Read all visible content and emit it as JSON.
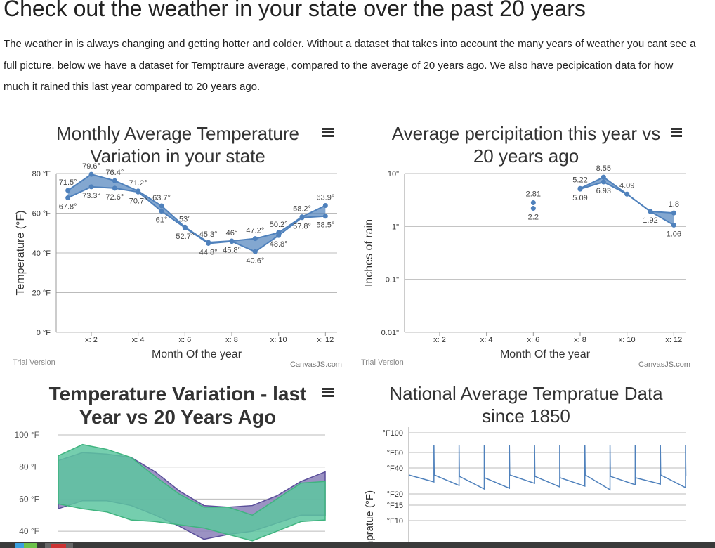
{
  "page": {
    "title": "Check out the weather in your state over the past 20 years",
    "intro": "The weather in is always changing and getting hotter and colder. Without a dataset that takes into account the many years of weather you cant see a full picture. below we have a dataset for Temptraure average, compared to the average of 20 years ago. We also have pecipication data for how much it rained this last year compared to 20 years ago."
  },
  "charts": {
    "temp_range": {
      "title_line1": "Monthly Average Temperature",
      "title_line2": "Variation in your state",
      "trial": "Trial Version",
      "credit": "CanvasJS.com"
    },
    "precip": {
      "title_line1": "Average percipitation this year vs",
      "title_line2": "20 years ago",
      "trial": "Trial Version",
      "credit": "CanvasJS.com"
    },
    "temp_variation": {
      "title_line1": "Temperature Variation - last",
      "title_line2": "Year vs 20 Years Ago"
    },
    "national": {
      "title_line1": "National Average Tempratue Data",
      "title_line2": "since 1850"
    }
  },
  "colors": {
    "primary_line": "#4f81bc",
    "range_fill": "#4f81bc",
    "green_fill": "#5dc6a0",
    "purple_fill": "#8a7fb8",
    "grid": "#bbbbbb"
  },
  "chart_data": [
    {
      "type": "rangeArea",
      "title": "Monthly Average Temperature Variation in your state",
      "xlabel": "Month Of the year",
      "ylabel": "Temperature (°F)",
      "ylim": [
        0,
        80
      ],
      "yticks": [
        "0 °F",
        "20 °F",
        "40 °F",
        "60 °F",
        "80 °F"
      ],
      "xticks": [
        "x: 2",
        "x: 4",
        "x: 6",
        "x: 8",
        "x: 10",
        "x: 12"
      ],
      "x": [
        1,
        2,
        3,
        4,
        5,
        6,
        7,
        8,
        9,
        10,
        11,
        12
      ],
      "high": [
        71.5,
        79.6,
        76.4,
        71.2,
        63.7,
        53,
        45.3,
        46,
        47.2,
        50.2,
        58.2,
        63.9
      ],
      "low": [
        67.8,
        73.3,
        72.6,
        70.7,
        61,
        52.7,
        44.8,
        45.8,
        40.6,
        48.8,
        57.8,
        58.5
      ],
      "high_labels": [
        "71.5°",
        "79.6°",
        "76.4°",
        "71.2°",
        "63.7°",
        "53°",
        "45.3°",
        "46°",
        "47.2°",
        "50.2°",
        "58.2°",
        "63.9°"
      ],
      "low_labels": [
        "67.8°",
        "73.3°",
        "72.6°",
        "70.7°",
        "61°",
        "52.7°",
        "44.8°",
        "45.8°",
        "40.6°",
        "48.8°",
        "57.8°",
        "58.5°"
      ],
      "grid": true
    },
    {
      "type": "rangeArea",
      "title": "Average percipitation this year vs 20 years ago",
      "xlabel": "Month Of the year",
      "ylabel": "Inches of rain",
      "log_scale": true,
      "ylim": [
        0.01,
        10
      ],
      "yticks": [
        "0.01\"",
        "0.1\"",
        "1\"",
        "10\""
      ],
      "xticks": [
        "x: 2",
        "x: 4",
        "x: 6",
        "x: 8",
        "x: 10",
        "x: 12"
      ],
      "segments": [
        {
          "x": [
            6
          ],
          "high": [
            2.81
          ],
          "low": [
            2.2
          ]
        },
        {
          "x": [
            8,
            9,
            10,
            11,
            12
          ],
          "high": [
            5.22,
            8.55,
            4.09,
            1.92,
            1.8
          ],
          "low": [
            5.09,
            6.93,
            4.09,
            1.92,
            1.06
          ]
        }
      ],
      "labels": [
        {
          "x": 6,
          "text": "2.81",
          "pos": "above"
        },
        {
          "x": 6,
          "text": "2.2",
          "pos": "below"
        },
        {
          "x": 8,
          "text": "5.22",
          "pos": "above"
        },
        {
          "x": 8,
          "text": "5.09",
          "pos": "below"
        },
        {
          "x": 9,
          "text": "8.55",
          "pos": "above"
        },
        {
          "x": 9,
          "text": "6.93",
          "pos": "below"
        },
        {
          "x": 10,
          "text": "4.09",
          "pos": "above"
        },
        {
          "x": 11,
          "text": "1.92",
          "pos": "below"
        },
        {
          "x": 12,
          "text": "1.8",
          "pos": "above"
        },
        {
          "x": 12,
          "text": "1.06",
          "pos": "below"
        }
      ],
      "grid": true
    },
    {
      "type": "area",
      "title": "Temperature Variation - last Year vs 20 Years Ago",
      "ylim": [
        30,
        100
      ],
      "yticks": [
        "40 °F",
        "60 °F",
        "80 °F",
        "100 °F"
      ],
      "series": [
        {
          "high": [
            84,
            89,
            88,
            86,
            77,
            65,
            56,
            55,
            56,
            62,
            71,
            77
          ],
          "low": [
            54,
            59,
            59,
            56,
            50,
            43,
            35,
            38,
            40,
            45,
            50,
            50
          ]
        },
        {
          "high": [
            87,
            94,
            91,
            86,
            74,
            63,
            55,
            55,
            50,
            60,
            70,
            71
          ],
          "low": [
            57,
            54,
            52,
            47,
            46,
            44,
            42,
            38,
            34,
            40,
            46,
            47
          ]
        }
      ],
      "grid": true
    },
    {
      "type": "line",
      "title": "National Average Tempratue Data since 1850",
      "ylabel": "Tempratue (°F)",
      "yticks": [
        "°F100",
        "°F60",
        "°F40",
        "°F20",
        "°F15",
        "°F10"
      ],
      "grid": true
    }
  ]
}
